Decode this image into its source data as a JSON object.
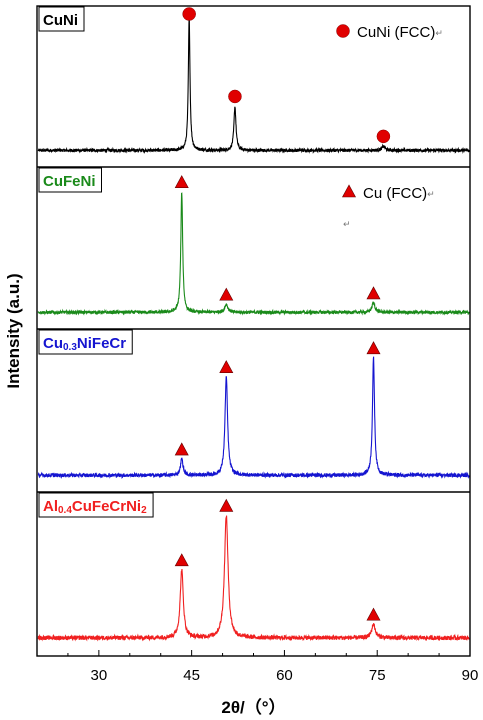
{
  "chart_data": {
    "type": "line",
    "xlabel": "2θ/（°）",
    "ylabel": "Intensity (a.u.)",
    "xlim": [
      20,
      90
    ],
    "x_ticks": [
      30,
      45,
      60,
      75,
      90
    ],
    "grid": false,
    "stacked_panels": true,
    "panels": [
      {
        "name": "CuNi",
        "label_parts": [
          {
            "t": "CuNi",
            "sub": false
          }
        ],
        "color": "#000000",
        "label_color": "#000000",
        "baseline": 0.05,
        "noise": 0.012,
        "peaks": [
          {
            "x": 44.6,
            "height": 1.0,
            "width": 0.16
          },
          {
            "x": 52.0,
            "height": 0.33,
            "width": 0.2
          },
          {
            "x": 76.0,
            "height": 0.03,
            "width": 0.3
          }
        ],
        "markers": [
          {
            "x": 44.6,
            "shape": "circle"
          },
          {
            "x": 52.0,
            "shape": "circle"
          },
          {
            "x": 76.0,
            "shape": "circle"
          }
        ],
        "legend": {
          "shape": "circle",
          "text": "CuNi (FCC)",
          "mark": "↵"
        }
      },
      {
        "name": "CuFeNi",
        "label_parts": [
          {
            "t": "CuFeNi",
            "sub": false
          }
        ],
        "color": "#1a8a1a",
        "label_color": "#1a8a1a",
        "baseline": 0.05,
        "noise": 0.012,
        "peaks": [
          {
            "x": 43.4,
            "height": 0.9,
            "width": 0.18
          },
          {
            "x": 50.6,
            "height": 0.06,
            "width": 0.3
          },
          {
            "x": 74.4,
            "height": 0.07,
            "width": 0.3
          }
        ],
        "markers": [
          {
            "x": 43.4,
            "shape": "triangle"
          },
          {
            "x": 50.6,
            "shape": "triangle"
          },
          {
            "x": 74.4,
            "shape": "triangle"
          }
        ],
        "legend": {
          "shape": "triangle",
          "text": "Cu (FCC)",
          "mark": "↵"
        }
      },
      {
        "name": "Cu0.3NiFeCr",
        "label_parts": [
          {
            "t": "Cu",
            "sub": false
          },
          {
            "t": "0.3",
            "sub": true
          },
          {
            "t": "NiFeCr",
            "sub": false
          }
        ],
        "color": "#1515d0",
        "label_color": "#1515d0",
        "baseline": 0.05,
        "noise": 0.014,
        "peaks": [
          {
            "x": 43.4,
            "height": 0.12,
            "width": 0.25
          },
          {
            "x": 50.6,
            "height": 0.73,
            "width": 0.25
          },
          {
            "x": 74.4,
            "height": 0.87,
            "width": 0.2
          }
        ],
        "markers": [
          {
            "x": 43.4,
            "shape": "triangle"
          },
          {
            "x": 50.6,
            "shape": "triangle"
          },
          {
            "x": 74.4,
            "shape": "triangle"
          }
        ]
      },
      {
        "name": "Al0.4CuFeCrNi2",
        "label_parts": [
          {
            "t": "Al",
            "sub": false
          },
          {
            "t": "0.4",
            "sub": true
          },
          {
            "t": "CuFeCrNi",
            "sub": false
          },
          {
            "t": "2",
            "sub": true
          }
        ],
        "color": "#f02020",
        "label_color": "#f02020",
        "baseline": 0.06,
        "noise": 0.016,
        "peaks": [
          {
            "x": 43.4,
            "height": 0.5,
            "width": 0.3
          },
          {
            "x": 50.6,
            "height": 0.9,
            "width": 0.35
          },
          {
            "x": 74.4,
            "height": 0.1,
            "width": 0.35
          }
        ],
        "markers": [
          {
            "x": 43.4,
            "shape": "triangle"
          },
          {
            "x": 50.6,
            "shape": "triangle"
          },
          {
            "x": 74.4,
            "shape": "triangle"
          }
        ]
      }
    ]
  },
  "marker_color": "#e00000",
  "small_mark": "↵"
}
